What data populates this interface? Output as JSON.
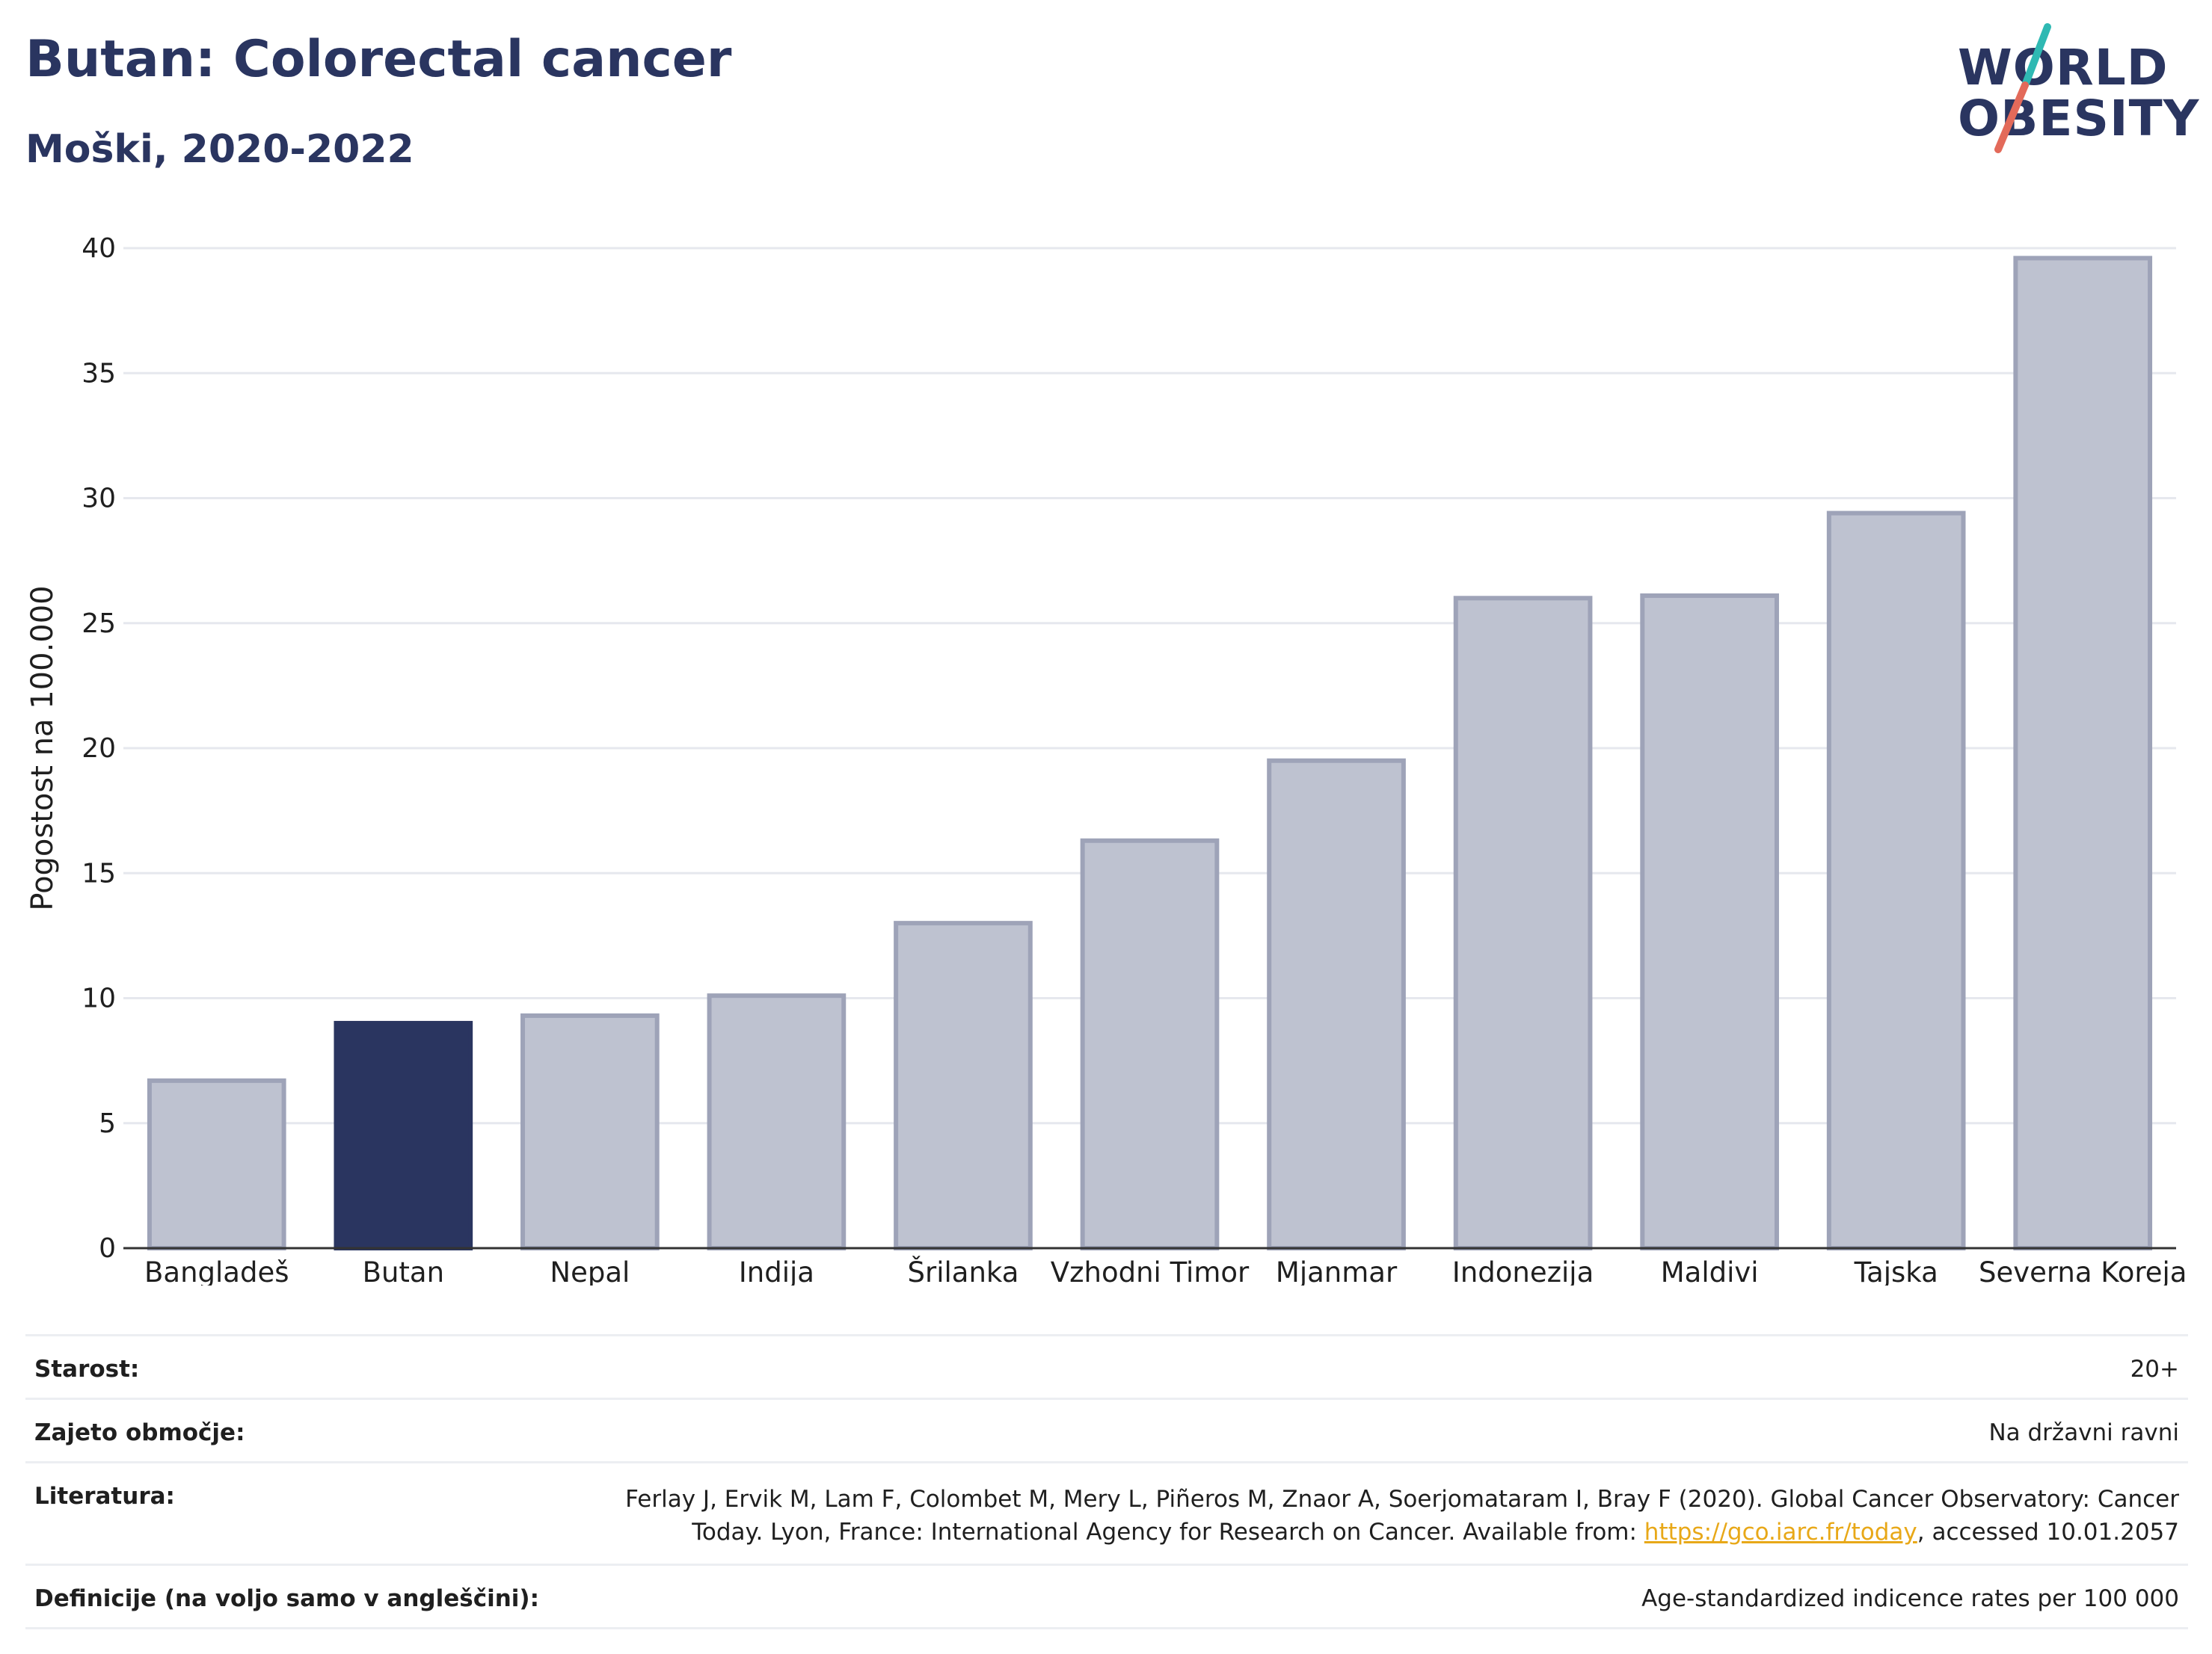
{
  "title": "Butan: Colorectal cancer",
  "subtitle": "Moški, 2020-2022",
  "logo": {
    "line1": "WORLD",
    "line2": "OBESITY",
    "accent_colors": [
      "#2fb9b3",
      "#e36a5a"
    ]
  },
  "colors": {
    "highlight": "#2a3560",
    "bar": "#bec2d0",
    "bar_border": "#9ea3b8",
    "grid": "#e6e8ee",
    "axis": "#333333"
  },
  "chart_data": {
    "type": "bar",
    "title": "",
    "xlabel": "",
    "ylabel": "Pogostost na 100.000",
    "ylim": [
      0,
      40
    ],
    "yticks": [
      0,
      5,
      10,
      15,
      20,
      25,
      30,
      35,
      40
    ],
    "grid": true,
    "highlight": "Butan",
    "categories": [
      "Bangladeš",
      "Butan",
      "Nepal",
      "Indija",
      "Šrilanka",
      "Vzhodni Timor",
      "Mjanmar",
      "Indonezija",
      "Maldivi",
      "Tajska",
      "Severna Koreja"
    ],
    "values": [
      6.7,
      9.0,
      9.3,
      10.1,
      13.0,
      16.3,
      19.5,
      26.0,
      26.1,
      29.4,
      39.6
    ]
  },
  "footer": {
    "age_label": "Starost:",
    "age_value": "20+",
    "area_label": "Zajeto območje:",
    "area_value": "Na državni ravni",
    "ref_label": "Literatura:",
    "ref_text": "Ferlay J, Ervik M, Lam F, Colombet M, Mery L, Piñeros M, Znaor A, Soerjomataram I, Bray F (2020). Global Cancer Observatory: Cancer Today. Lyon, France: International Agency for Research on Cancer. Available from: ",
    "ref_link": "https://gco.iarc.fr/today",
    "ref_suffix": ", accessed 10.01.2057",
    "def_label": "Definicije (na voljo samo v angleščini):",
    "def_value": "Age-standardized indicence rates per 100 000"
  }
}
